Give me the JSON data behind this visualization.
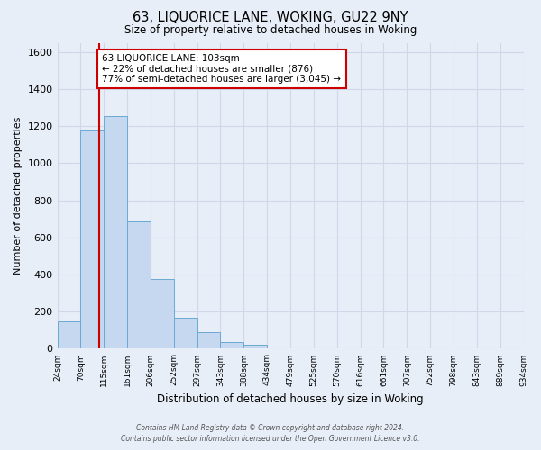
{
  "title": "63, LIQUORICE LANE, WOKING, GU22 9NY",
  "subtitle": "Size of property relative to detached houses in Woking",
  "xlabel": "Distribution of detached houses by size in Woking",
  "ylabel": "Number of detached properties",
  "bar_values": [
    150,
    1175,
    1255,
    685,
    375,
    165,
    90,
    35,
    20,
    0,
    0,
    0,
    0,
    0,
    0,
    0,
    0,
    0,
    0,
    0
  ],
  "bin_labels": [
    "24sqm",
    "70sqm",
    "115sqm",
    "161sqm",
    "206sqm",
    "252sqm",
    "297sqm",
    "343sqm",
    "388sqm",
    "434sqm",
    "479sqm",
    "525sqm",
    "570sqm",
    "616sqm",
    "661sqm",
    "707sqm",
    "752sqm",
    "798sqm",
    "843sqm",
    "889sqm",
    "934sqm"
  ],
  "bar_color": "#c5d8f0",
  "bar_edge_color": "#6aaad4",
  "bg_color": "#e8eef8",
  "plot_bg_color": "#e8eef8",
  "grid_color": "#d0d8e8",
  "vline_x": 1.78,
  "vline_color": "#cc0000",
  "annotation_text": "63 LIQUORICE LANE: 103sqm\n← 22% of detached houses are smaller (876)\n77% of semi-detached houses are larger (3,045) →",
  "annotation_box_facecolor": "#ffffff",
  "annotation_box_edgecolor": "#cc0000",
  "ylim": [
    0,
    1650
  ],
  "yticks": [
    0,
    200,
    400,
    600,
    800,
    1000,
    1200,
    1400,
    1600
  ],
  "footnote_line1": "Contains HM Land Registry data © Crown copyright and database right 2024.",
  "footnote_line2": "Contains public sector information licensed under the Open Government Licence v3.0."
}
